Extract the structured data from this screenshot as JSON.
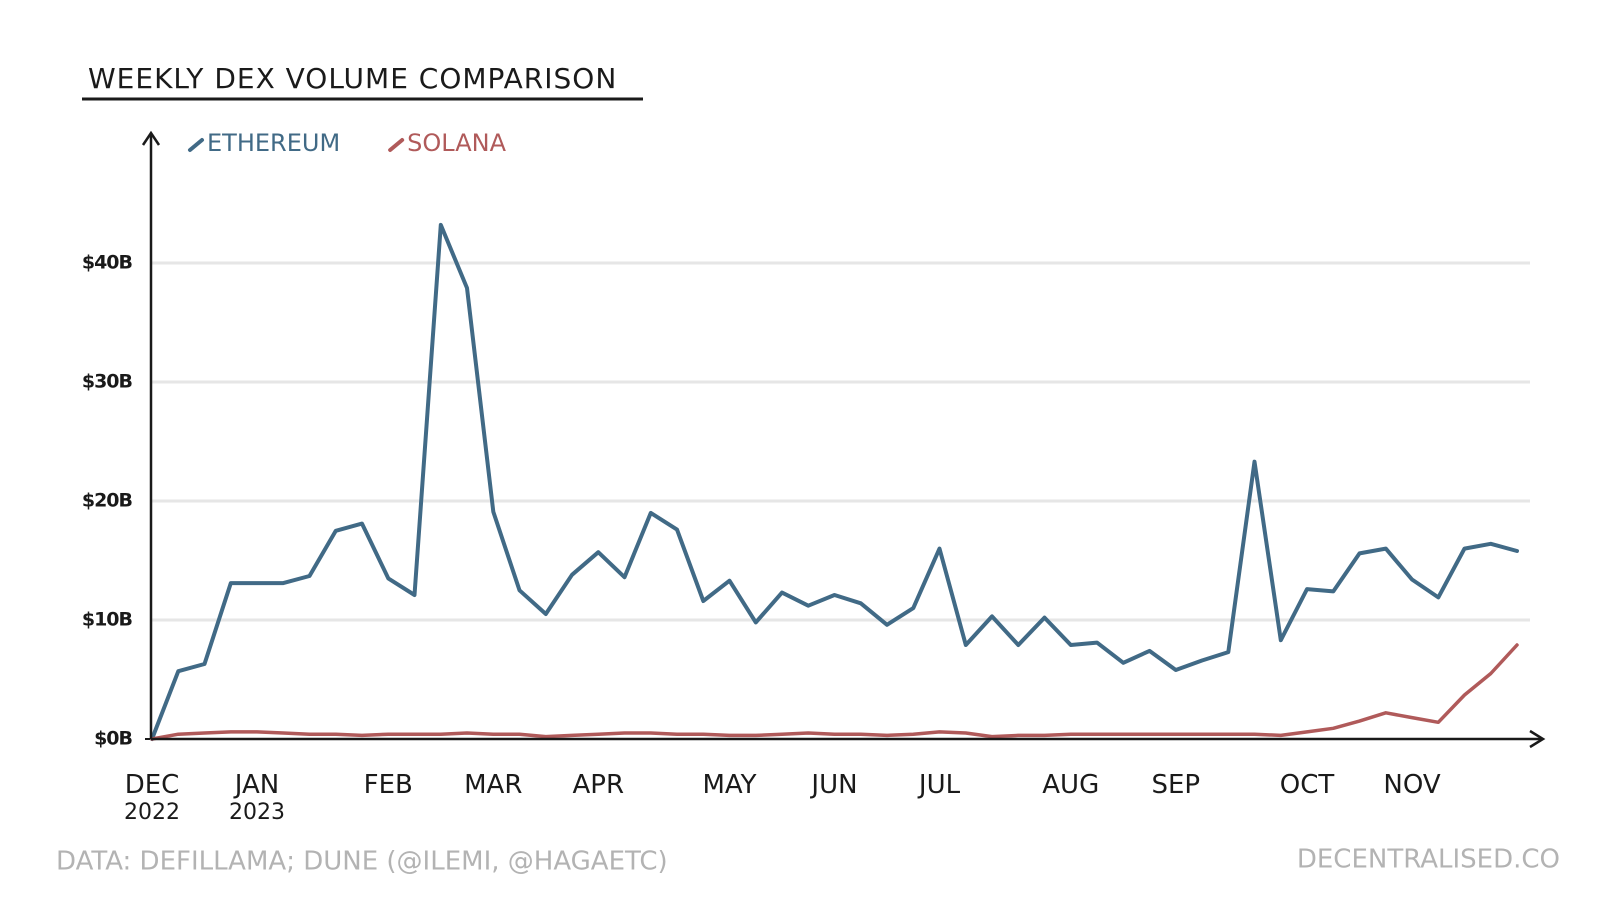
{
  "chart_data": {
    "type": "line",
    "title": "WEEKLY DEX VOLUME COMPARISON",
    "source": "DATA: DEFILLAMA; DUNE (@ILEMI, @HAGAETC)",
    "brand": "DECENTRALISED.CO",
    "categories": [
      "DEC 2022",
      null,
      null,
      null,
      "JAN 2023",
      null,
      null,
      null,
      null,
      "FEB",
      null,
      null,
      null,
      "MAR",
      null,
      null,
      null,
      "APR",
      null,
      null,
      null,
      null,
      "MAY",
      null,
      null,
      null,
      "JUN",
      null,
      null,
      null,
      "JUL",
      null,
      null,
      null,
      null,
      "AUG",
      null,
      null,
      null,
      "SEP",
      null,
      null,
      null,
      null,
      "OCT",
      null,
      null,
      null,
      "NOV",
      null,
      null,
      null,
      null
    ],
    "series": [
      {
        "name": "ETHEREUM",
        "color": "#416a86",
        "values": [
          0,
          5.7,
          6.3,
          13.1,
          13.1,
          13.1,
          13.7,
          17.5,
          18.1,
          13.5,
          12.1,
          43.2,
          37.9,
          19.1,
          12.5,
          10.5,
          13.8,
          15.7,
          13.6,
          19.0,
          17.6,
          11.6,
          13.3,
          9.8,
          12.3,
          11.2,
          12.1,
          11.4,
          9.6,
          11.0,
          16.0,
          7.9,
          10.3,
          7.9,
          10.2,
          7.9,
          8.1,
          6.4,
          7.4,
          5.8,
          6.6,
          7.3,
          23.3,
          8.3,
          12.6,
          12.4,
          15.6,
          16.0,
          13.4,
          11.9,
          16.0,
          16.4,
          15.8
        ]
      },
      {
        "name": "SOLANA",
        "color": "#b05a5a",
        "values": [
          0,
          0.4,
          0.5,
          0.6,
          0.6,
          0.5,
          0.4,
          0.4,
          0.3,
          0.4,
          0.4,
          0.4,
          0.5,
          0.4,
          0.4,
          0.2,
          0.3,
          0.4,
          0.5,
          0.5,
          0.4,
          0.4,
          0.3,
          0.3,
          0.4,
          0.5,
          0.4,
          0.4,
          0.3,
          0.4,
          0.6,
          0.5,
          0.2,
          0.3,
          0.3,
          0.4,
          0.4,
          0.4,
          0.4,
          0.4,
          0.4,
          0.4,
          0.4,
          0.3,
          0.6,
          0.9,
          1.5,
          2.2,
          1.8,
          1.4,
          3.7,
          5.5,
          7.9
        ]
      }
    ],
    "ylim": [
      0,
      50
    ],
    "yticks": [
      {
        "value": 0,
        "label": "$0B"
      },
      {
        "value": 10,
        "label": "$10B"
      },
      {
        "value": 20,
        "label": "$20B"
      },
      {
        "value": 30,
        "label": "$30B"
      },
      {
        "value": 40,
        "label": "$40B"
      }
    ],
    "grid": true,
    "legend": "top-left"
  }
}
